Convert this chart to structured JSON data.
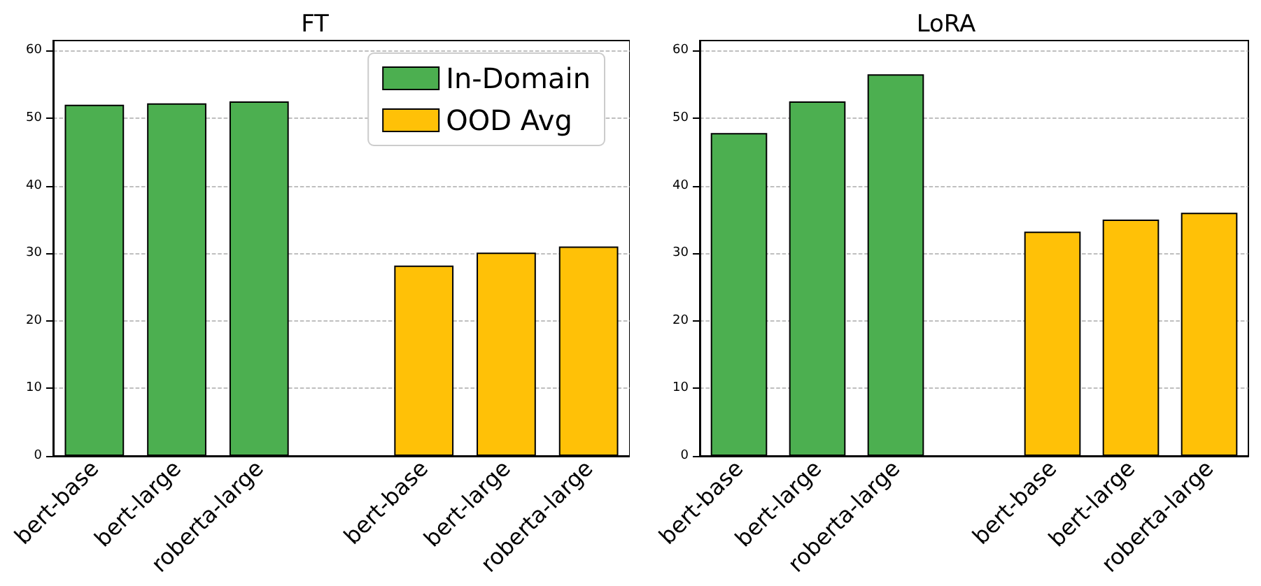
{
  "chart_data": [
    {
      "type": "bar",
      "title": "FT",
      "categories": [
        "bert-base",
        "bert-large",
        "roberta-large",
        null,
        "bert-base",
        "bert-large",
        "roberta-large"
      ],
      "series": [
        {
          "name": "In-Domain",
          "color": "#4caf50",
          "values": [
            52,
            52.2,
            52.5,
            null,
            null,
            null,
            null
          ]
        },
        {
          "name": "OOD Avg",
          "color": "#ffc107",
          "values": [
            null,
            null,
            null,
            null,
            28.2,
            30.1,
            31
          ]
        }
      ],
      "ylim": [
        0,
        61.5
      ],
      "yticks": [
        0,
        10,
        20,
        30,
        40,
        50,
        60
      ],
      "grid": "y",
      "legend": "top right"
    },
    {
      "type": "bar",
      "title": "LoRA",
      "categories": [
        "bert-base",
        "bert-large",
        "roberta-large",
        null,
        "bert-base",
        "bert-large",
        "roberta-large"
      ],
      "series": [
        {
          "color": "#4caf50",
          "values": [
            47.8,
            52.5,
            56.5,
            null,
            null,
            null,
            null
          ]
        },
        {
          "color": "#ffc107",
          "values": [
            null,
            null,
            null,
            null,
            33.2,
            35,
            36
          ]
        }
      ],
      "ylim": [
        0,
        61.5
      ],
      "yticks": [
        0,
        10,
        20,
        30,
        40,
        50,
        60
      ],
      "grid": "y"
    }
  ]
}
